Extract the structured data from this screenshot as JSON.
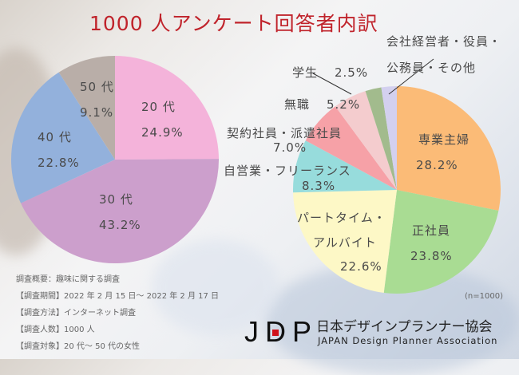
{
  "title": "1000 人アンケート回答者内訳",
  "chart_data": [
    {
      "type": "pie",
      "title": "年代",
      "categories": [
        "20代",
        "30代",
        "40代",
        "50代"
      ],
      "values": [
        24.9,
        43.2,
        22.8,
        9.1
      ],
      "colors": [
        "#f4b3da",
        "#cc9fcc",
        "#93b1dc",
        "#b9aea8"
      ],
      "unit": "%"
    },
    {
      "type": "pie",
      "title": "職業",
      "categories": [
        "専業主婦",
        "正社員",
        "パートタイム・アルバイト",
        "自営業・フリーランス",
        "契約社員・派遣社員",
        "無職",
        "学生",
        "会社経営者・役員・公務員・その他"
      ],
      "values": [
        28.2,
        23.8,
        22.6,
        8.3,
        7.0,
        5.2,
        2.5,
        2.4
      ],
      "colors": [
        "#fbbb77",
        "#a9dc93",
        "#fdf8c6",
        "#97dcdc",
        "#f6a1a7",
        "#f4ccce",
        "#a2bb8d",
        "#d3d0ef"
      ],
      "unit": "%",
      "note": "(n=1000)"
    }
  ],
  "left_labels": {
    "s20": {
      "name": "20 代",
      "pct": "24.9%"
    },
    "s30": {
      "name": "30 代",
      "pct": "43.2%"
    },
    "s40": {
      "name": "40 代",
      "pct": "22.8%"
    },
    "s50": {
      "name": "50 代",
      "pct": "9.1%"
    }
  },
  "right_labels": {
    "housewife": {
      "name": "専業主婦",
      "pct": "28.2%"
    },
    "fulltime": {
      "name": "正社員",
      "pct": "23.8%"
    },
    "parttime": {
      "name1": "パートタイム・",
      "name2": "アルバイト",
      "pct": "22.6%"
    },
    "selfemployed": {
      "name": "自営業・フリーランス",
      "pct": "8.3%"
    },
    "contract": {
      "name": "契約社員・派遣社員",
      "pct": "7.0%"
    },
    "unemployed": {
      "name": "無職",
      "pct": "5.2%"
    },
    "student": {
      "name": "学生",
      "pct": "2.5%"
    },
    "other": {
      "name1": "会社経営者・役員・",
      "name2": "公務員・その他"
    }
  },
  "n_note": "(n=1000)",
  "survey_info": [
    "調査概要：趣味に関する調査",
    "【調査期間】2022 年 2 月 15 日～ 2022 年 2 月 17 日",
    "【調査方法】インターネット調査",
    "【調査人数】1000 人",
    "【調査対象】20 代～ 50 代の女性"
  ],
  "logo": {
    "mark": "JDP",
    "name_jp": "日本デザインプランナー協会",
    "name_en": "JAPAN Design Planner Association",
    "accent": "#d0121b"
  }
}
